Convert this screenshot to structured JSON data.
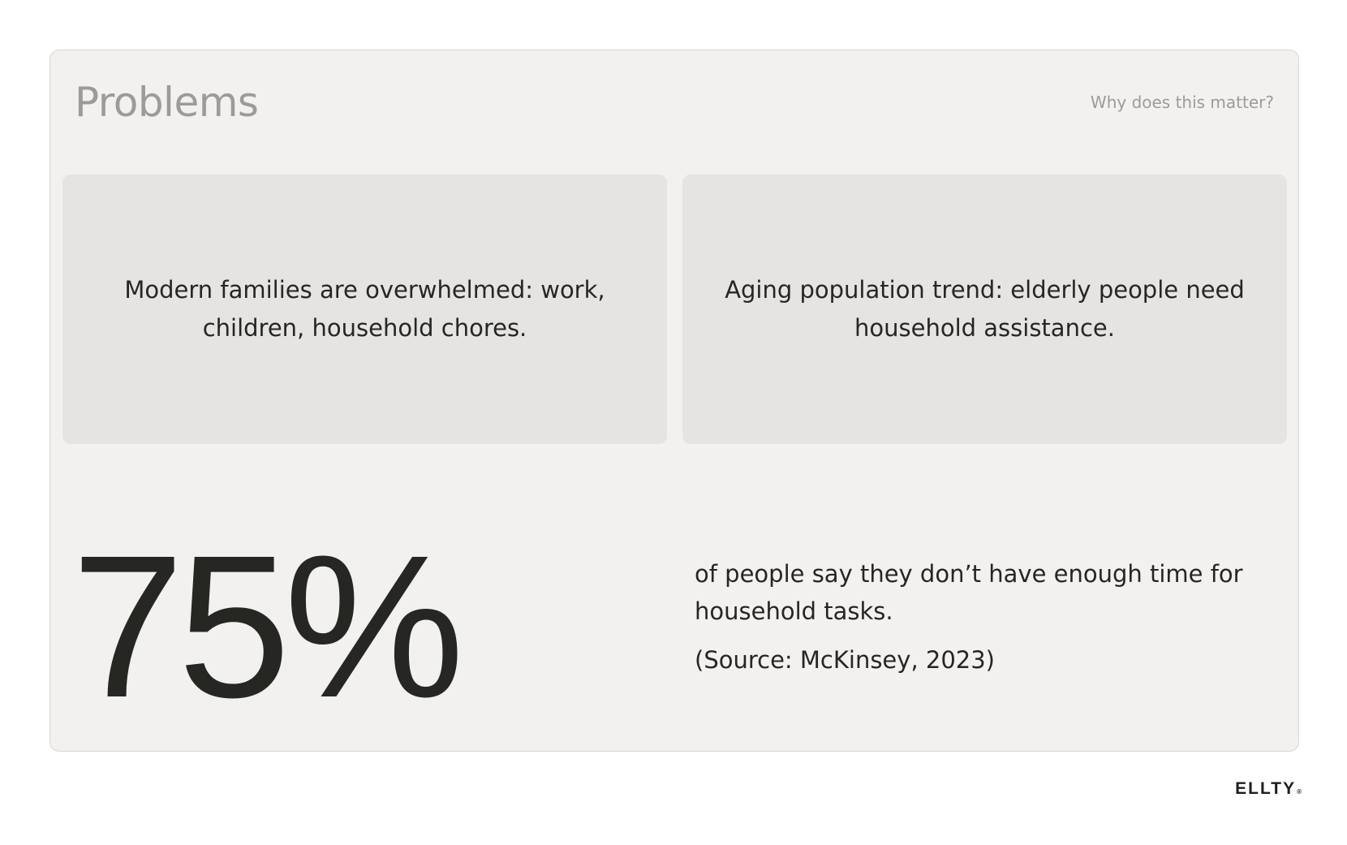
{
  "header": {
    "title": "Problems",
    "subtitle": "Why does this matter?"
  },
  "cards": [
    {
      "text": "Modern families are overwhelmed: work, children, household chores."
    },
    {
      "text": "Aging population trend: elderly people need household assistance."
    }
  ],
  "stat": {
    "value": "75%",
    "description": "of people say they don’t have enough time for household tasks.",
    "source": "(Source: McKinsey, 2023)"
  },
  "footer": {
    "logo_text": "ELLTY",
    "logo_mark": "®"
  },
  "colors": {
    "page_background": "#ffffff",
    "slide_background": "#f2f1ef",
    "card_background": "#e5e4e2",
    "title_color": "#9c9b97",
    "text_color": "#262622"
  }
}
